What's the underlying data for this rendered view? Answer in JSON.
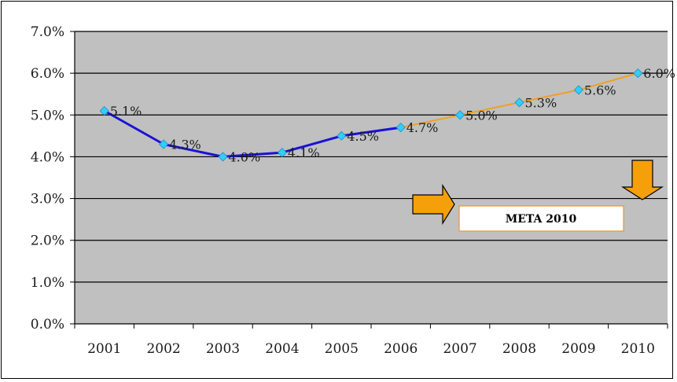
{
  "chart_data": {
    "type": "line",
    "categories": [
      "2001",
      "2002",
      "2003",
      "2004",
      "2005",
      "2006",
      "2007",
      "2008",
      "2009",
      "2010"
    ],
    "series": [
      {
        "values": [
          5.1,
          4.3,
          4.0,
          4.1,
          4.5,
          4.7,
          null,
          null,
          null,
          null
        ],
        "color": "#1a12d6"
      },
      {
        "values": [
          null,
          null,
          null,
          null,
          null,
          4.7,
          5.0,
          5.3,
          5.6,
          6.0
        ],
        "color": "#f0a020"
      }
    ],
    "point_labels": [
      "5.1%",
      "4.3%",
      "4.0%",
      "4.1%",
      "4.5%",
      "4.7%",
      "5.0%",
      "5.3%",
      "5.6%",
      "6.0%"
    ],
    "point_values": [
      5.1,
      4.3,
      4.0,
      4.1,
      4.5,
      4.7,
      5.0,
      5.3,
      5.6,
      6.0
    ],
    "ylim": [
      0,
      7
    ],
    "yticks": [
      "0.0%",
      "1.0%",
      "2.0%",
      "3.0%",
      "4.0%",
      "5.0%",
      "6.0%",
      "7.0%"
    ],
    "marker_color": "#33ccff",
    "plot_bg": "#c0c0c0",
    "grid": true,
    "annotation": {
      "text": "META 2010",
      "arrow_color": "#f5a00a"
    }
  }
}
